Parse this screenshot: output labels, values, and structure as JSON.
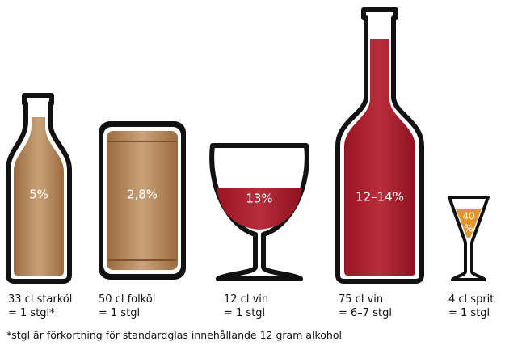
{
  "items": [
    {
      "percent": [
        "5%"
      ],
      "caption": [
        "33 cl starköl",
        "= 1 stgl*"
      ]
    },
    {
      "percent": [
        "2,8%"
      ],
      "caption": [
        "50 cl folköl",
        "= 1 stgl"
      ]
    },
    {
      "percent": [
        "13%"
      ],
      "caption": [
        "12 cl vin",
        "= 1 stgl"
      ]
    },
    {
      "percent": [
        "12–14%"
      ],
      "caption": [
        "75 cl vin",
        "= 6–7 stgl"
      ]
    },
    {
      "percent": [
        "40",
        "%"
      ],
      "caption": [
        "4 cl sprit",
        "= 1 stgl"
      ]
    }
  ],
  "footnote": "*stgl är förkortning för standardglas innehållande 12 gram alkohol"
}
